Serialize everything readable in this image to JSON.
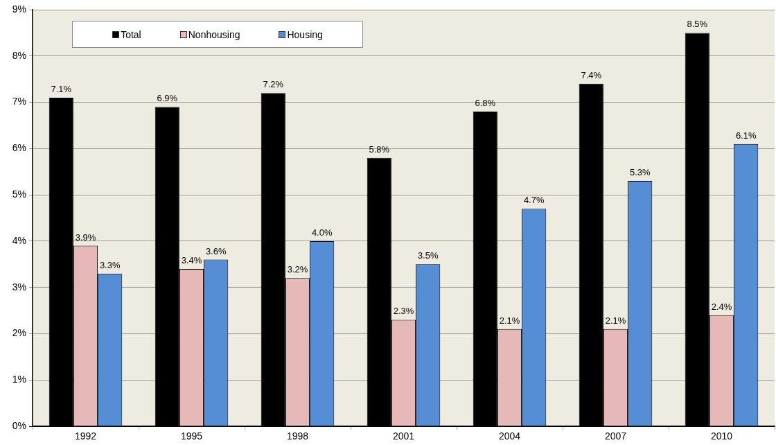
{
  "chart_data": {
    "type": "bar",
    "categories": [
      "1992",
      "1995",
      "1998",
      "2001",
      "2004",
      "2007",
      "2010"
    ],
    "series": [
      {
        "name": "Total",
        "color": "#000000",
        "values": [
          7.1,
          6.9,
          7.2,
          5.8,
          6.8,
          7.4,
          8.5
        ],
        "value_labels": [
          "7.1%",
          "6.9%",
          "7.2%",
          "5.8%",
          "6.8%",
          "7.4%",
          "8.5%"
        ]
      },
      {
        "name": "Nonhousing",
        "color": "#e6b9b8",
        "values": [
          3.9,
          3.4,
          3.2,
          2.3,
          2.1,
          2.1,
          2.4
        ],
        "value_labels": [
          "3.9%",
          "3.4%",
          "3.2%",
          "2.3%",
          "2.1%",
          "2.1%",
          "2.4%"
        ]
      },
      {
        "name": "Housing",
        "color": "#558ed5",
        "values": [
          3.3,
          3.6,
          4.0,
          3.5,
          4.7,
          5.3,
          6.1
        ],
        "value_labels": [
          "3.3%",
          "3.6%",
          "4.0%",
          "3.5%",
          "4.7%",
          "5.3%",
          "6.1%"
        ]
      }
    ],
    "ylim": [
      0,
      9
    ],
    "yticks": [
      {
        "value": 0,
        "label": "0%"
      },
      {
        "value": 1,
        "label": "1%"
      },
      {
        "value": 2,
        "label": "2%"
      },
      {
        "value": 3,
        "label": "3%"
      },
      {
        "value": 4,
        "label": "4%"
      },
      {
        "value": 5,
        "label": "5%"
      },
      {
        "value": 6,
        "label": "6%"
      },
      {
        "value": 7,
        "label": "7%"
      },
      {
        "value": 8,
        "label": "8%"
      },
      {
        "value": 9,
        "label": "9%"
      }
    ],
    "grid": "y",
    "legend": "top left"
  }
}
